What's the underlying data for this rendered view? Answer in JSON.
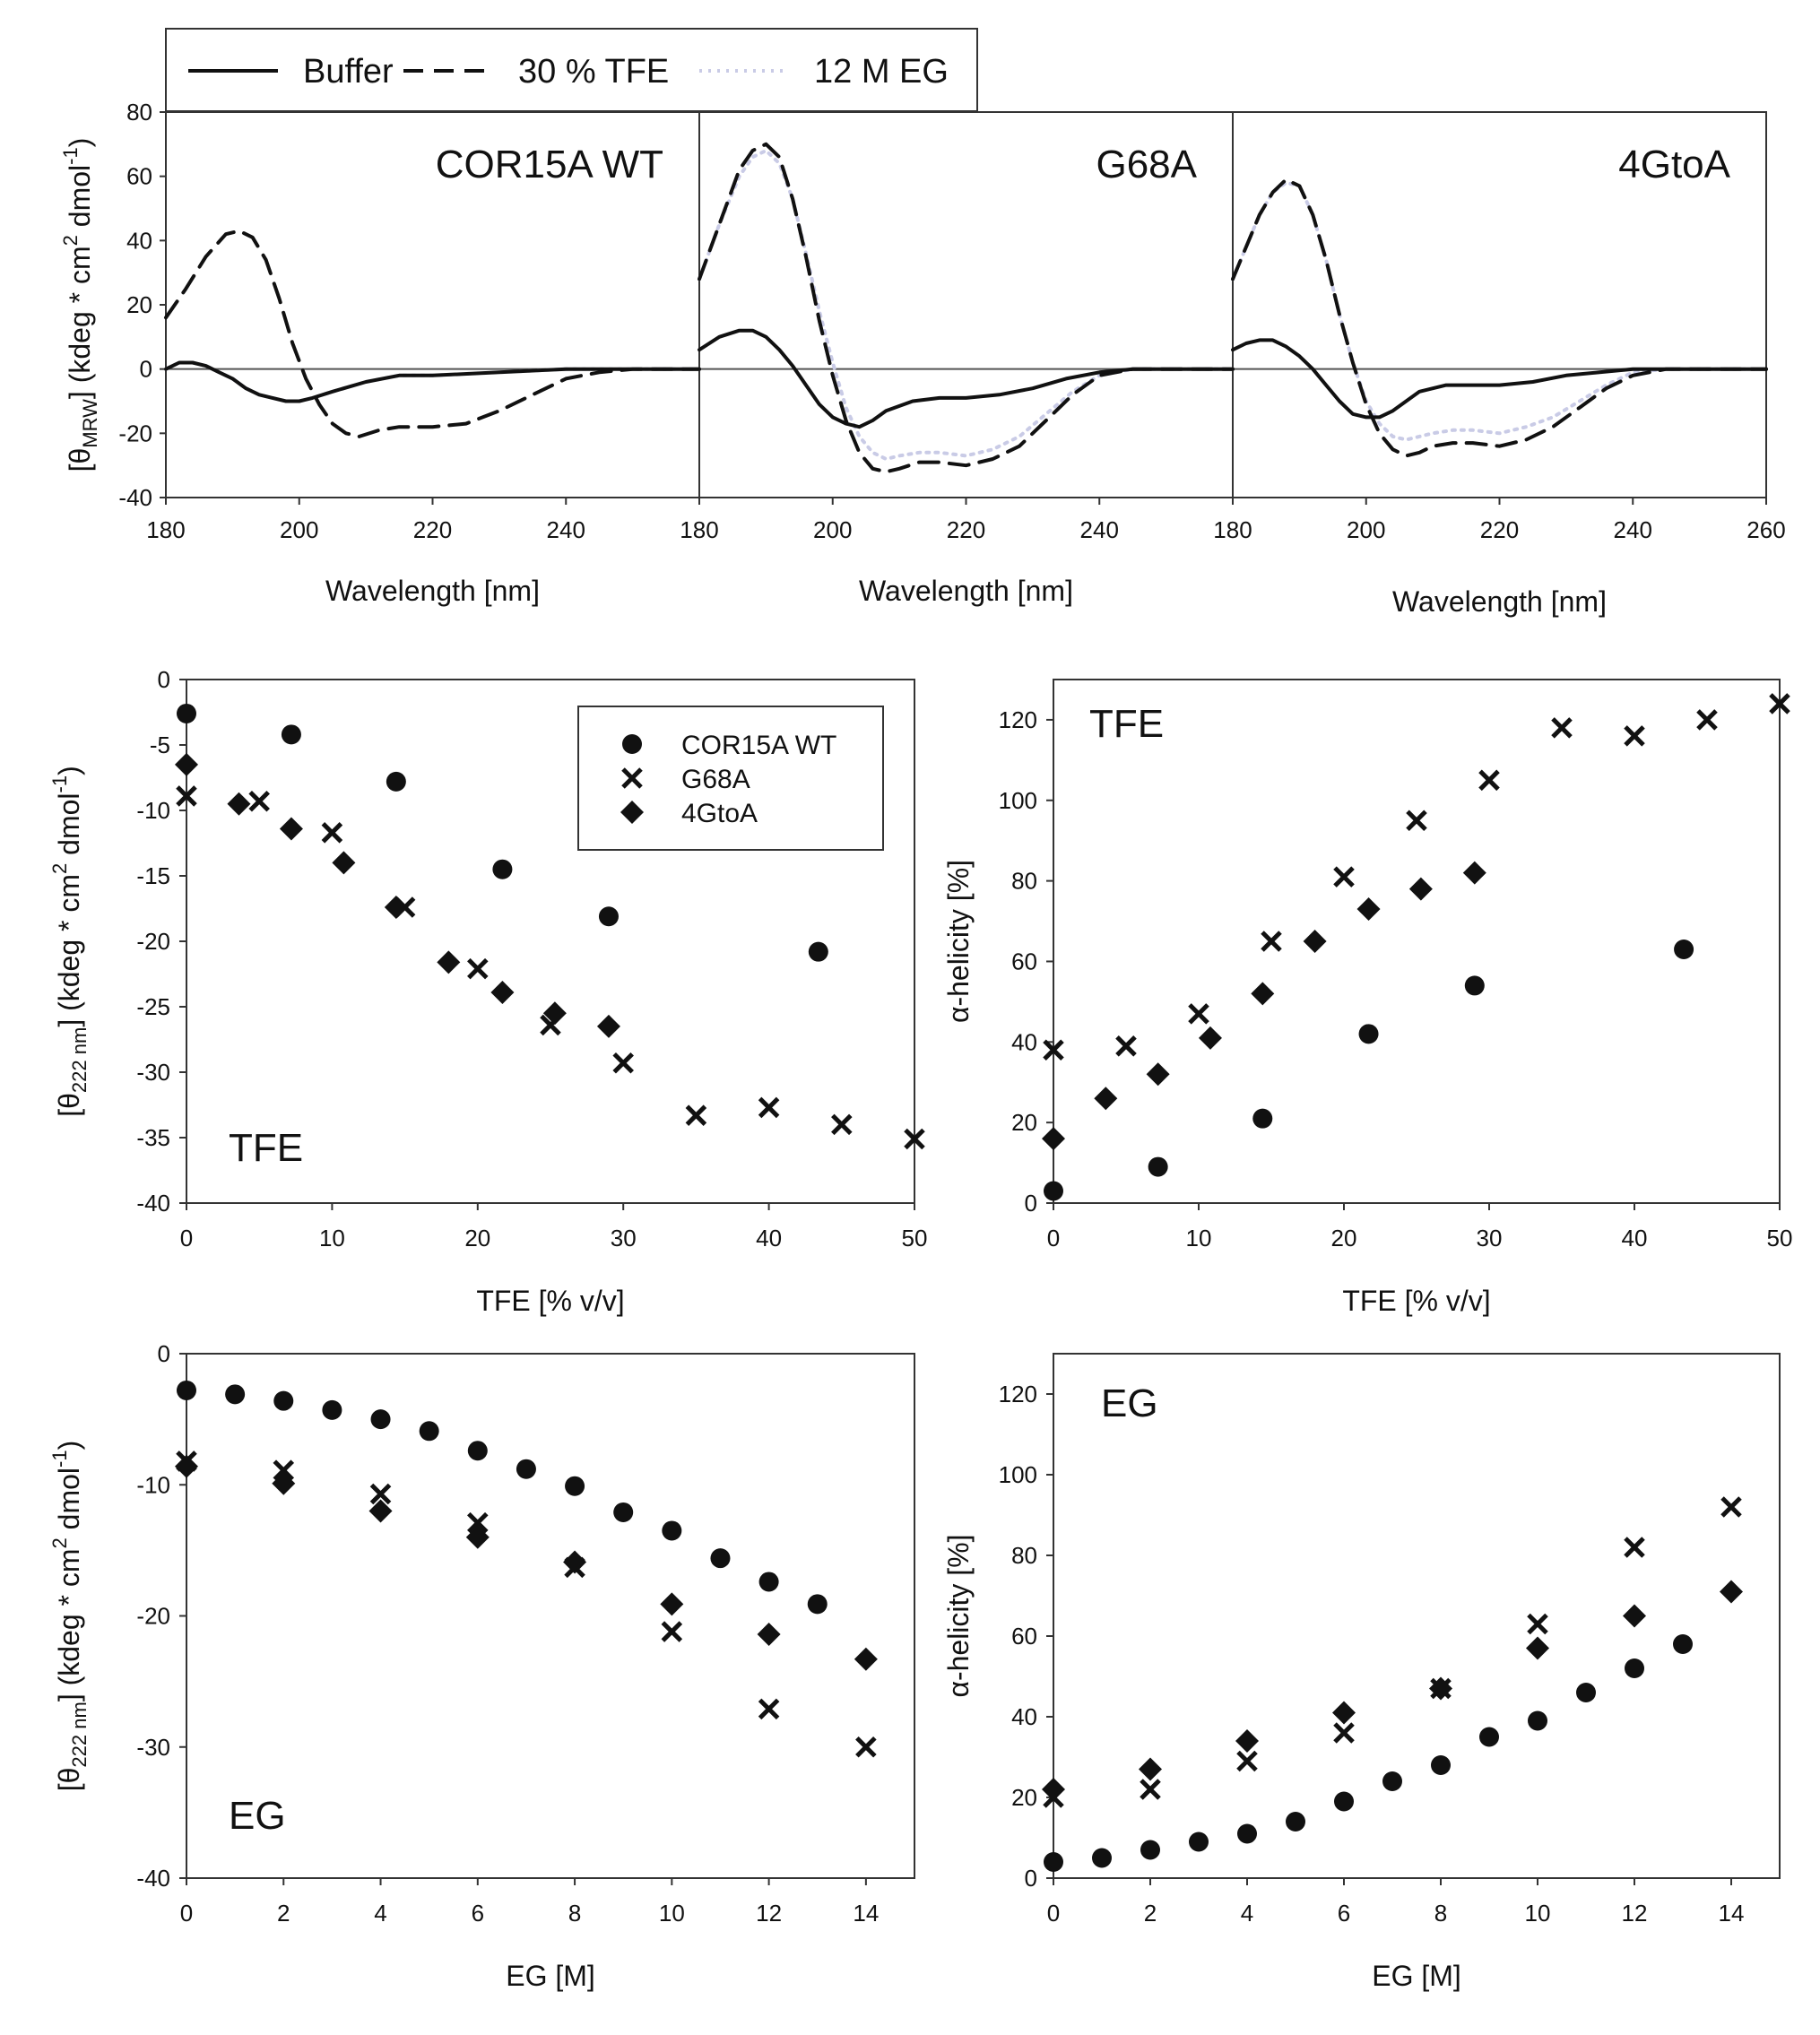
{
  "chart_data": [
    {
      "id": "cd-spectra",
      "type": "line",
      "legend": [
        "Buffer",
        "30 % TFE",
        "12 M EG"
      ],
      "ylabel_main": "[θ",
      "ylabel_sub": "MRW",
      "ylabel_rest": "] (kdeg * cm",
      "ylabel_sup": "2",
      "ylabel_end": " dmol",
      "ylabel_sup2": "-1",
      "ylabel_close": ")",
      "ylim": [
        -40,
        80
      ],
      "yticks": [
        "80",
        "60",
        "40",
        "20",
        "0",
        "-20",
        "-40"
      ],
      "panels": [
        {
          "title": "COR15A WT",
          "xlabel": "Wavelength [nm]",
          "xlim": [
            180,
            260
          ],
          "xticks": [
            "180",
            "200",
            "220",
            "240"
          ],
          "series": [
            {
              "name": "Buffer",
              "x": [
                180,
                182,
                184,
                186,
                188,
                190,
                192,
                194,
                196,
                198,
                200,
                202,
                205,
                210,
                215,
                220,
                230,
                240,
                250,
                260
              ],
              "y": [
                0,
                2,
                2,
                1,
                -1,
                -3,
                -6,
                -8,
                -9,
                -10,
                -10,
                -9,
                -7,
                -4,
                -2,
                -2,
                -1,
                0,
                0,
                0
              ]
            },
            {
              "name": "30 % TFE",
              "x": [
                180,
                183,
                186,
                189,
                191,
                193,
                195,
                197,
                199,
                201,
                203,
                205,
                207,
                209,
                212,
                215,
                220,
                225,
                230,
                235,
                240,
                245,
                250,
                260
              ],
              "y": [
                16,
                25,
                35,
                42,
                43,
                41,
                34,
                22,
                8,
                -3,
                -11,
                -17,
                -20,
                -21,
                -19,
                -18,
                -18,
                -17,
                -13,
                -8,
                -3,
                -1,
                0,
                0
              ]
            },
            {
              "name": "12 M EG",
              "x": [
                180,
                182,
                184,
                186,
                188,
                190,
                192,
                194,
                196,
                198,
                200,
                202,
                205,
                210,
                215,
                220,
                230,
                240,
                250,
                260
              ],
              "y": [
                0,
                2,
                2,
                1,
                -1,
                -3,
                -6,
                -8,
                -9,
                -10,
                -10,
                -9,
                -7,
                -4,
                -2,
                -2,
                -1,
                0,
                0,
                0
              ]
            }
          ]
        },
        {
          "title": "G68A",
          "xlabel": "Wavelength [nm]",
          "xlim": [
            180,
            260
          ],
          "xticks": [
            "180",
            "200",
            "220",
            "240"
          ],
          "series": [
            {
              "name": "Buffer",
              "x": [
                180,
                183,
                186,
                188,
                190,
                192,
                194,
                196,
                198,
                200,
                202,
                204,
                206,
                208,
                212,
                216,
                220,
                225,
                230,
                235,
                240,
                245,
                250,
                260
              ],
              "y": [
                6,
                10,
                12,
                12,
                10,
                6,
                1,
                -5,
                -11,
                -15,
                -17,
                -18,
                -16,
                -13,
                -10,
                -9,
                -9,
                -8,
                -6,
                -3,
                -1,
                0,
                0,
                0
              ]
            },
            {
              "name": "30 % TFE",
              "x": [
                180,
                183,
                186,
                188,
                190,
                192,
                194,
                196,
                198,
                200,
                202,
                204,
                206,
                208,
                210,
                213,
                216,
                220,
                224,
                228,
                232,
                236,
                240,
                245,
                250,
                260
              ],
              "y": [
                28,
                45,
                62,
                68,
                70,
                66,
                53,
                35,
                15,
                -2,
                -16,
                -26,
                -31,
                -32,
                -31,
                -29,
                -29,
                -30,
                -28,
                -24,
                -16,
                -8,
                -2,
                0,
                0,
                0
              ]
            },
            {
              "name": "12 M EG",
              "x": [
                180,
                183,
                186,
                188,
                190,
                192,
                194,
                196,
                198,
                200,
                202,
                204,
                206,
                208,
                210,
                213,
                216,
                220,
                224,
                228,
                232,
                236,
                240,
                245,
                250,
                260
              ],
              "y": [
                28,
                45,
                60,
                66,
                68,
                64,
                53,
                36,
                18,
                2,
                -12,
                -21,
                -26,
                -28,
                -27,
                -26,
                -26,
                -27,
                -25,
                -21,
                -14,
                -7,
                -2,
                0,
                0,
                0
              ]
            }
          ]
        },
        {
          "title": "4GtoA",
          "xlabel": "Wavelength [nm]",
          "xlim": [
            180,
            260
          ],
          "xticks": [
            "180",
            "200",
            "220",
            "240",
            "260"
          ],
          "series": [
            {
              "name": "Buffer",
              "x": [
                180,
                182,
                184,
                186,
                188,
                190,
                192,
                194,
                196,
                198,
                200,
                202,
                204,
                206,
                208,
                212,
                216,
                220,
                225,
                230,
                235,
                240,
                245,
                250,
                260
              ],
              "y": [
                6,
                8,
                9,
                9,
                7,
                4,
                0,
                -5,
                -10,
                -14,
                -15,
                -15,
                -13,
                -10,
                -7,
                -5,
                -5,
                -5,
                -4,
                -2,
                -1,
                0,
                0,
                0,
                0
              ]
            },
            {
              "name": "30 % TFE",
              "x": [
                180,
                182,
                184,
                186,
                188,
                190,
                192,
                194,
                196,
                198,
                200,
                202,
                204,
                206,
                208,
                210,
                213,
                216,
                220,
                224,
                228,
                232,
                236,
                240,
                245,
                250,
                260
              ],
              "y": [
                28,
                38,
                48,
                55,
                59,
                57,
                48,
                34,
                17,
                2,
                -11,
                -20,
                -25,
                -27,
                -26,
                -24,
                -23,
                -23,
                -24,
                -22,
                -18,
                -12,
                -6,
                -2,
                0,
                0,
                0
              ]
            },
            {
              "name": "12 M EG",
              "x": [
                180,
                182,
                184,
                186,
                188,
                190,
                192,
                194,
                196,
                198,
                200,
                202,
                204,
                206,
                208,
                210,
                213,
                216,
                220,
                224,
                228,
                232,
                236,
                240,
                245,
                250,
                260
              ],
              "y": [
                28,
                38,
                48,
                55,
                58,
                57,
                48,
                34,
                17,
                2,
                -10,
                -17,
                -21,
                -22,
                -21,
                -20,
                -19,
                -19,
                -20,
                -18,
                -15,
                -10,
                -5,
                -1,
                0,
                0,
                0
              ]
            }
          ]
        }
      ]
    },
    {
      "id": "tfe-theta",
      "type": "scatter",
      "title": "TFE",
      "xlabel": "TFE [% v/v]",
      "ylabel_main": "[θ",
      "ylabel_sub": "222 nm",
      "ylabel_rest": "] (kdeg * cm",
      "ylabel_sup": "2",
      "ylabel_end": " dmol",
      "ylabel_sup2": "-1",
      "ylabel_close": ")",
      "xlim": [
        0,
        50
      ],
      "ylim": [
        -40,
        0
      ],
      "xticks": [
        "0",
        "10",
        "20",
        "30",
        "40",
        "50"
      ],
      "yticks": [
        "0",
        "-5",
        "-10",
        "-15",
        "-20",
        "-25",
        "-30",
        "-35",
        "-40"
      ],
      "legend_labels": [
        "COR15A WT",
        "G68A",
        "4GtoA"
      ],
      "series": [
        {
          "name": "COR15A WT",
          "marker": "circle",
          "x": [
            0,
            7.2,
            14.4,
            21.7,
            29,
            43.4
          ],
          "y": [
            -2.6,
            -4.2,
            -7.8,
            -14.5,
            -18.1,
            -20.8
          ]
        },
        {
          "name": "G68A",
          "marker": "x",
          "x": [
            0,
            5,
            10,
            15,
            20,
            25,
            30,
            35,
            40,
            45,
            50
          ],
          "y": [
            -8.9,
            -9.3,
            -11.7,
            -17.4,
            -22.1,
            -26.4,
            -29.3,
            -33.3,
            -32.7,
            -34.0,
            -35.1
          ]
        },
        {
          "name": "4GtoA",
          "marker": "diamond",
          "x": [
            0,
            3.6,
            7.2,
            10.8,
            14.4,
            18,
            21.7,
            25.3,
            29
          ],
          "y": [
            -6.5,
            -9.5,
            -11.4,
            -14.0,
            -17.4,
            -21.6,
            -23.9,
            -25.5,
            -26.5
          ]
        }
      ]
    },
    {
      "id": "tfe-helicity",
      "type": "scatter",
      "title": "TFE",
      "xlabel": "TFE [% v/v]",
      "ylabel": "α-helicity [%]",
      "xlim": [
        0,
        50
      ],
      "ylim": [
        0,
        130
      ],
      "xticks": [
        "0",
        "10",
        "20",
        "30",
        "40",
        "50"
      ],
      "yticks": [
        "0",
        "20",
        "40",
        "60",
        "80",
        "100",
        "120"
      ],
      "series": [
        {
          "name": "COR15A WT",
          "marker": "circle",
          "x": [
            0,
            7.2,
            14.4,
            21.7,
            29,
            43.4
          ],
          "y": [
            3,
            9,
            21,
            42,
            54,
            63
          ]
        },
        {
          "name": "G68A",
          "marker": "x",
          "x": [
            0,
            5,
            10,
            15,
            20,
            25,
            30,
            35,
            40,
            45,
            50
          ],
          "y": [
            38,
            39,
            47,
            65,
            81,
            95,
            105,
            118,
            116,
            120,
            124
          ]
        },
        {
          "name": "4GtoA",
          "marker": "diamond",
          "x": [
            0,
            3.6,
            7.2,
            10.8,
            14.4,
            18,
            21.7,
            25.3,
            29
          ],
          "y": [
            16,
            26,
            32,
            41,
            52,
            65,
            73,
            78,
            82
          ]
        }
      ]
    },
    {
      "id": "eg-theta",
      "type": "scatter",
      "title": "EG",
      "xlabel": "EG [M]",
      "ylabel_main": "[θ",
      "ylabel_sub": "222 nm",
      "ylabel_rest": "] (kdeg * cm",
      "ylabel_sup": "2",
      "ylabel_end": " dmol",
      "ylabel_sup2": "-1",
      "ylabel_close": ")",
      "xlim": [
        0,
        15
      ],
      "ylim": [
        -40,
        0
      ],
      "xticks": [
        "0",
        "2",
        "4",
        "6",
        "8",
        "10",
        "12",
        "14"
      ],
      "yticks": [
        "0",
        "-10",
        "-20",
        "-30",
        "-40"
      ],
      "series": [
        {
          "name": "COR15A WT",
          "marker": "circle",
          "x": [
            0,
            1,
            2,
            3,
            4,
            5,
            6,
            7,
            8,
            9,
            10,
            11,
            12,
            13
          ],
          "y": [
            -2.8,
            -3.1,
            -3.6,
            -4.3,
            -5.0,
            -5.9,
            -7.4,
            -8.8,
            -10.1,
            -12.1,
            -13.5,
            -15.6,
            -17.4,
            -19.1
          ]
        },
        {
          "name": "G68A",
          "marker": "x",
          "x": [
            0,
            2,
            4,
            6,
            8,
            10,
            12,
            14
          ],
          "y": [
            -8.2,
            -8.9,
            -10.7,
            -12.9,
            -16.3,
            -21.2,
            -27.1,
            -30.0
          ]
        },
        {
          "name": "4GtoA",
          "marker": "diamond",
          "x": [
            0,
            2,
            4,
            6,
            8,
            10,
            12,
            14
          ],
          "y": [
            -8.6,
            -9.9,
            -12.0,
            -14.0,
            -15.9,
            -19.1,
            -21.4,
            -23.3
          ]
        }
      ]
    },
    {
      "id": "eg-helicity",
      "type": "scatter",
      "title": "EG",
      "xlabel": "EG [M]",
      "ylabel": "α-helicity [%]",
      "xlim": [
        0,
        15
      ],
      "ylim": [
        0,
        130
      ],
      "xticks": [
        "0",
        "2",
        "4",
        "6",
        "8",
        "10",
        "12",
        "14"
      ],
      "yticks": [
        "0",
        "20",
        "40",
        "60",
        "80",
        "100",
        "120"
      ],
      "series": [
        {
          "name": "COR15A WT",
          "marker": "circle",
          "x": [
            0,
            1,
            2,
            3,
            4,
            5,
            6,
            7,
            8,
            9,
            10,
            11,
            12,
            13
          ],
          "y": [
            4,
            5,
            7,
            9,
            11,
            14,
            19,
            24,
            28,
            35,
            39,
            46,
            52,
            58
          ]
        },
        {
          "name": "G68A",
          "marker": "x",
          "x": [
            0,
            2,
            4,
            6,
            8,
            10,
            12,
            14
          ],
          "y": [
            20,
            22,
            29,
            36,
            47,
            63,
            82,
            92
          ]
        },
        {
          "name": "4GtoA",
          "marker": "diamond",
          "x": [
            0,
            2,
            4,
            6,
            8,
            10,
            12,
            14
          ],
          "y": [
            22,
            27,
            34,
            41,
            47,
            57,
            65,
            71
          ]
        }
      ]
    }
  ]
}
